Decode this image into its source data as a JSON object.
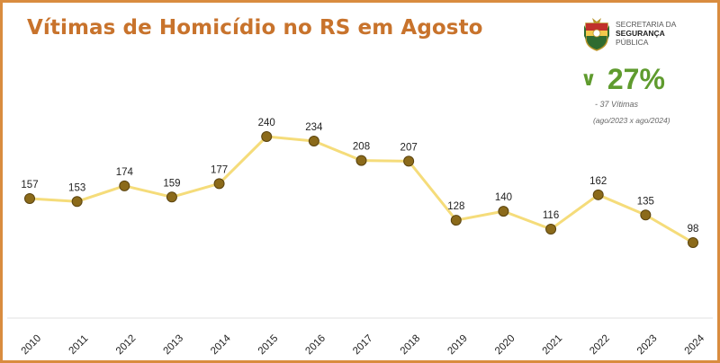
{
  "title": "Vítimas de Homicídio no RS em Agosto",
  "logo": {
    "line1": "SECRETARIA DA",
    "line2": "SEGURANÇA",
    "line3": "PÚBLICA"
  },
  "stat": {
    "arrow": "∨",
    "percent": "27%",
    "subtitle": "- 37 Vítimas",
    "period": "(ago/2023 x ago/2024)"
  },
  "colors": {
    "title": "#c8732c",
    "frame": "#d98c3f",
    "line": "#f5dc7a",
    "marker": "#8b6a1a",
    "stat": "#5f9b2e"
  },
  "chart_data": {
    "type": "line",
    "categories": [
      "2010",
      "2011",
      "2012",
      "2013",
      "2014",
      "2015",
      "2016",
      "2017",
      "2018",
      "2019",
      "2020",
      "2021",
      "2022",
      "2023",
      "2024"
    ],
    "values": [
      157,
      153,
      174,
      159,
      177,
      240,
      234,
      208,
      207,
      128,
      140,
      116,
      162,
      135,
      98
    ],
    "data_labels": [
      "157",
      "153",
      "174",
      "159",
      "177",
      "240",
      "234",
      "208",
      "207",
      "128",
      "140",
      "116",
      "162",
      "135",
      "98"
    ],
    "title": "Vítimas de Homicídio no RS em Agosto",
    "xlabel": "",
    "ylabel": "",
    "ylim": [
      0,
      300
    ],
    "grid": false,
    "legend": "none"
  }
}
